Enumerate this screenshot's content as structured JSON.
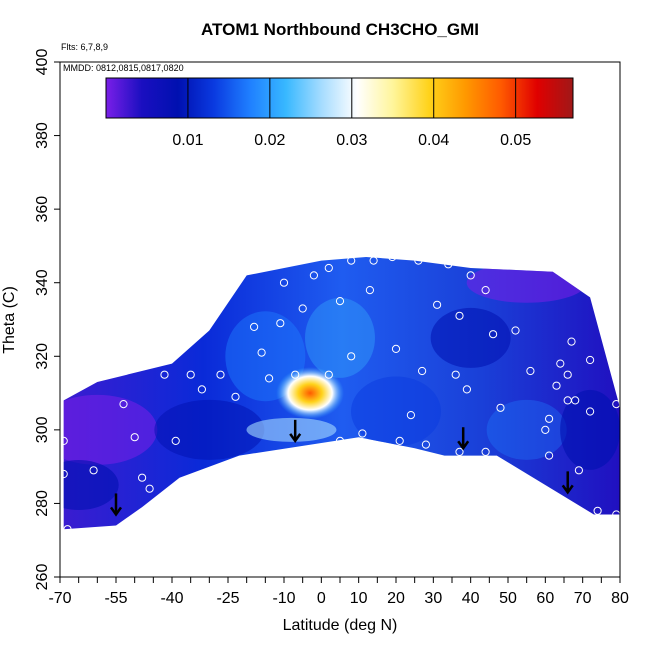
{
  "chart_data": {
    "type": "heatmap",
    "title": "ATOM1 Northbound CH3CHO_GMI",
    "flights_label": "Flts: 6,7,8,9",
    "dates_label": "MMDD: 0812,0815,0817,0820",
    "xlabel": "Latitude (deg N)",
    "ylabel": "Theta (C)",
    "xlim": [
      -70,
      80
    ],
    "ylim": [
      260,
      400
    ],
    "x_tick_labels": [
      "-70",
      "-55",
      "-40",
      "-25",
      "-10",
      "0",
      "10",
      "20",
      "30",
      "40",
      "50",
      "60",
      "70",
      "80"
    ],
    "y_tick_labels": [
      "260",
      "280",
      "300",
      "320",
      "340",
      "360",
      "380",
      "400"
    ],
    "colorbar": {
      "range": [
        0,
        0.057
      ],
      "ticks": [
        "0.01",
        "0.02",
        "0.03",
        "0.04",
        "0.05"
      ],
      "colors": [
        "#7a1fe8",
        "#1a0fc0",
        "#0010b0",
        "#0a3ae0",
        "#1f7fff",
        "#38b8ff",
        "#a6dcff",
        "#ffffff",
        "#fff59a",
        "#ffd21a",
        "#ff9900",
        "#ff5a00",
        "#e00000",
        "#a01818"
      ]
    },
    "domain_lower_boundary": [
      {
        "lat": -69,
        "theta": 273
      },
      {
        "lat": -55,
        "theta": 274
      },
      {
        "lat": -48,
        "theta": 279
      },
      {
        "lat": -38,
        "theta": 287
      },
      {
        "lat": -22,
        "theta": 293
      },
      {
        "lat": 10,
        "theta": 298
      },
      {
        "lat": 25,
        "theta": 295
      },
      {
        "lat": 33,
        "theta": 293
      },
      {
        "lat": 47,
        "theta": 293
      },
      {
        "lat": 73,
        "theta": 277
      },
      {
        "lat": 80,
        "theta": 277
      }
    ],
    "domain_upper_boundary": [
      {
        "lat": -69,
        "theta": 308
      },
      {
        "lat": -60,
        "theta": 313
      },
      {
        "lat": -40,
        "theta": 318
      },
      {
        "lat": -30,
        "theta": 327
      },
      {
        "lat": -20,
        "theta": 342
      },
      {
        "lat": 0,
        "theta": 346
      },
      {
        "lat": 12,
        "theta": 347
      },
      {
        "lat": 25,
        "theta": 346
      },
      {
        "lat": 40,
        "theta": 344
      },
      {
        "lat": 62,
        "theta": 343
      },
      {
        "lat": 72,
        "theta": 336
      },
      {
        "lat": 80,
        "theta": 306
      }
    ],
    "sample_points": [
      {
        "lat": -69,
        "theta": 297
      },
      {
        "lat": -69,
        "theta": 288
      },
      {
        "lat": -68,
        "theta": 273
      },
      {
        "lat": -61,
        "theta": 289
      },
      {
        "lat": -53,
        "theta": 307
      },
      {
        "lat": -50,
        "theta": 298
      },
      {
        "lat": -48,
        "theta": 287
      },
      {
        "lat": -46,
        "theta": 284
      },
      {
        "lat": -45,
        "theta": 277
      },
      {
        "lat": -42,
        "theta": 315
      },
      {
        "lat": -39,
        "theta": 297
      },
      {
        "lat": -35,
        "theta": 315
      },
      {
        "lat": -32,
        "theta": 311
      },
      {
        "lat": -30,
        "theta": 288
      },
      {
        "lat": -27,
        "theta": 315
      },
      {
        "lat": -23,
        "theta": 309
      },
      {
        "lat": -21,
        "theta": 291
      },
      {
        "lat": -18,
        "theta": 328
      },
      {
        "lat": -16,
        "theta": 321
      },
      {
        "lat": -14,
        "theta": 314
      },
      {
        "lat": -11,
        "theta": 329
      },
      {
        "lat": -10,
        "theta": 340
      },
      {
        "lat": -7,
        "theta": 315
      },
      {
        "lat": -5,
        "theta": 333
      },
      {
        "lat": -2,
        "theta": 342
      },
      {
        "lat": 2,
        "theta": 344
      },
      {
        "lat": 2,
        "theta": 315
      },
      {
        "lat": 5,
        "theta": 297
      },
      {
        "lat": 5,
        "theta": 335
      },
      {
        "lat": 8,
        "theta": 320
      },
      {
        "lat": 8,
        "theta": 346
      },
      {
        "lat": 11,
        "theta": 299
      },
      {
        "lat": 13,
        "theta": 338
      },
      {
        "lat": 14,
        "theta": 346
      },
      {
        "lat": 19,
        "theta": 347
      },
      {
        "lat": 20,
        "theta": 322
      },
      {
        "lat": 21,
        "theta": 297
      },
      {
        "lat": 24,
        "theta": 304
      },
      {
        "lat": 26,
        "theta": 346
      },
      {
        "lat": 27,
        "theta": 316
      },
      {
        "lat": 28,
        "theta": 296
      },
      {
        "lat": 31,
        "theta": 334
      },
      {
        "lat": 34,
        "theta": 345
      },
      {
        "lat": 36,
        "theta": 315
      },
      {
        "lat": 37,
        "theta": 294
      },
      {
        "lat": 37,
        "theta": 331
      },
      {
        "lat": 39,
        "theta": 311
      },
      {
        "lat": 40,
        "theta": 342
      },
      {
        "lat": 44,
        "theta": 338
      },
      {
        "lat": 44,
        "theta": 294
      },
      {
        "lat": 46,
        "theta": 326
      },
      {
        "lat": 48,
        "theta": 306
      },
      {
        "lat": 52,
        "theta": 327
      },
      {
        "lat": 56,
        "theta": 316
      },
      {
        "lat": 60,
        "theta": 300
      },
      {
        "lat": 61,
        "theta": 293
      },
      {
        "lat": 61,
        "theta": 303
      },
      {
        "lat": 63,
        "theta": 312
      },
      {
        "lat": 64,
        "theta": 318
      },
      {
        "lat": 66,
        "theta": 315
      },
      {
        "lat": 66,
        "theta": 308
      },
      {
        "lat": 67,
        "theta": 324
      },
      {
        "lat": 67,
        "theta": 278
      },
      {
        "lat": 68,
        "theta": 308
      },
      {
        "lat": 69,
        "theta": 289
      },
      {
        "lat": 72,
        "theta": 319
      },
      {
        "lat": 72,
        "theta": 305
      },
      {
        "lat": 74,
        "theta": 278
      },
      {
        "lat": 79,
        "theta": 307
      },
      {
        "lat": 79,
        "theta": 277
      }
    ],
    "arrows": [
      {
        "lat": -55,
        "theta": 280
      },
      {
        "lat": -7,
        "theta": 300
      },
      {
        "lat": 38,
        "theta": 298
      },
      {
        "lat": 66,
        "theta": 286
      }
    ]
  }
}
